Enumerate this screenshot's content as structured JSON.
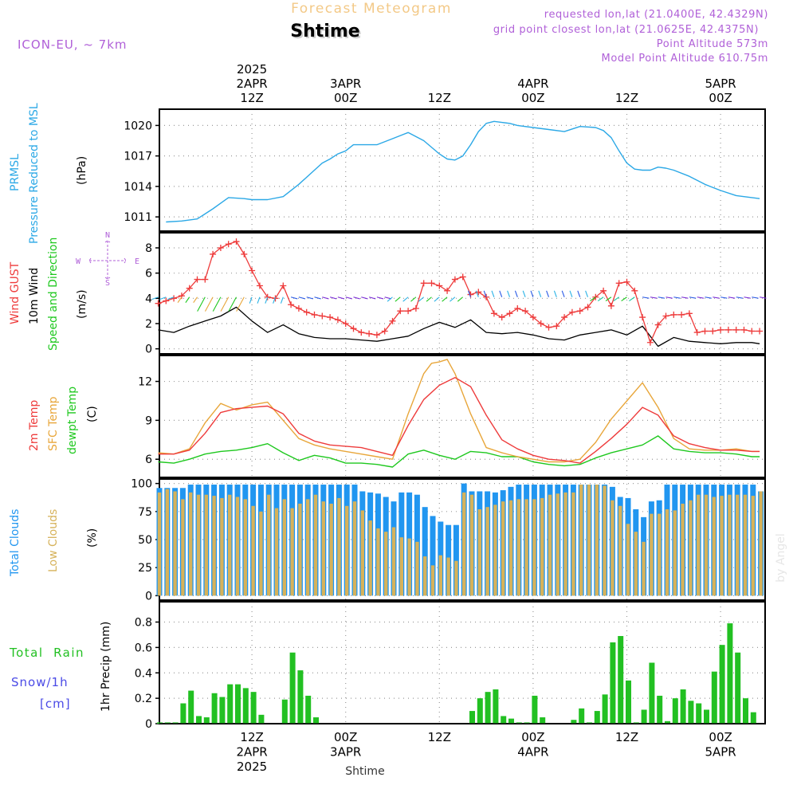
{
  "header": {
    "product": "Forecast Meteogram",
    "location": "Shtime",
    "model": "ICON-EU, ~ 7km",
    "requested": "requested lon,lat (21.0400E, 42.4329N)",
    "gridpoint": "grid point closest lon,lat (21.0625E, 42.4375N)",
    "point_alt": "Point Altitude 573m",
    "model_alt": "Model Point Altitude 610.75m",
    "footer_location": "Shtime",
    "watermark": "by Angel"
  },
  "time_axis": {
    "top_labels": [
      {
        "hour": 12,
        "lines": [
          "2025",
          "2APR",
          "12Z"
        ]
      },
      {
        "hour": 24,
        "lines": [
          "3APR",
          "00Z"
        ]
      },
      {
        "hour": 36,
        "lines": [
          "12Z"
        ]
      },
      {
        "hour": 48,
        "lines": [
          "4APR",
          "00Z"
        ]
      },
      {
        "hour": 60,
        "lines": [
          "12Z"
        ]
      },
      {
        "hour": 72,
        "lines": [
          "5APR",
          "00Z"
        ]
      }
    ],
    "bottom_labels": [
      {
        "hour": 12,
        "lines": [
          "12Z",
          "2APR",
          "2025"
        ]
      },
      {
        "hour": 24,
        "lines": [
          "00Z",
          "3APR"
        ]
      },
      {
        "hour": 36,
        "lines": [
          "12Z"
        ]
      },
      {
        "hour": 48,
        "lines": [
          "00Z",
          "4APR"
        ]
      },
      {
        "hour": 60,
        "lines": [
          "12Z"
        ]
      },
      {
        "hour": 72,
        "lines": [
          "00Z",
          "5APR"
        ]
      }
    ]
  },
  "panels": {
    "pressure": {
      "label_lines": [
        "PRMSL",
        "Pressure Reduced to MSL"
      ],
      "unit": "(hPa)",
      "ticks": [
        "1011",
        "1014",
        "1017",
        "1020"
      ]
    },
    "wind": {
      "gust_label": "Wind GUST",
      "wind_label": "10m Wind",
      "dir_label": "Speed and Direction",
      "unit": "(m/s)",
      "ticks": [
        "0",
        "2",
        "4",
        "6",
        "8"
      ],
      "compass_n": "N",
      "compass_s": "S",
      "compass_w": "W",
      "compass_e": "E"
    },
    "temp": {
      "t2m_label": "2m Temp",
      "sfc_label": "SFC Temp",
      "dew_label": "dewpt Temp",
      "unit": "(C)",
      "ticks": [
        "6",
        "9",
        "12"
      ]
    },
    "clouds": {
      "total_label": "Total Clouds",
      "low_label": "Low Clouds",
      "unit": "(%)",
      "ticks": [
        "0",
        "25",
        "50",
        "75",
        "100"
      ]
    },
    "precip": {
      "rain_label": "Total  Rain",
      "snow_label": "Snow/1h",
      "snow_unit": "[cm]",
      "unit": "1hr Precip (mm)",
      "ticks": [
        "0",
        "0.2",
        "0.4",
        "0.6",
        "0.8"
      ]
    }
  },
  "colors": {
    "pressure": "#2ba8e6",
    "gust": "#ee3b3b",
    "wind": "#000000",
    "t2m": "#ee3b3b",
    "sfc": "#e8a63a",
    "dew": "#1ec81e",
    "total_clouds": "#2196f0",
    "low_clouds": "#d6b25a",
    "rain": "#22c022",
    "purple": "#b060d8",
    "title_orange": "#f3c987"
  },
  "chart_data": [
    {
      "type": "line",
      "title": "PRMSL Pressure Reduced to MSL",
      "ylabel": "(hPa)",
      "ylim": [
        1009.6,
        1021.6
      ],
      "series": [
        {
          "name": "PRMSL",
          "x": [
            1,
            3,
            5,
            7,
            9,
            11,
            12,
            14,
            16,
            18,
            20,
            21,
            22,
            23,
            24,
            25,
            26,
            28,
            30,
            32,
            34,
            36,
            37,
            38,
            39,
            40,
            41,
            42,
            43,
            44,
            45,
            46,
            48,
            50,
            52,
            54,
            56,
            57,
            58,
            59,
            60,
            61,
            62,
            63,
            64,
            65,
            66,
            68,
            70,
            72,
            74,
            76,
            77
          ],
          "values": [
            1010.5,
            1010.6,
            1010.8,
            1011.8,
            1012.9,
            1012.8,
            1012.7,
            1012.7,
            1013.0,
            1014.2,
            1015.6,
            1016.3,
            1016.7,
            1017.2,
            1017.5,
            1018.1,
            1018.1,
            1018.1,
            1018.7,
            1019.3,
            1018.5,
            1017.2,
            1016.7,
            1016.6,
            1017.0,
            1018.1,
            1019.4,
            1020.2,
            1020.4,
            1020.3,
            1020.2,
            1020.0,
            1019.8,
            1019.6,
            1019.4,
            1019.9,
            1019.8,
            1019.5,
            1018.8,
            1017.5,
            1016.3,
            1015.7,
            1015.6,
            1015.6,
            1015.9,
            1015.8,
            1015.6,
            1015.0,
            1014.2,
            1013.6,
            1013.1,
            1012.9,
            1012.8
          ]
        }
      ]
    },
    {
      "type": "line",
      "title": "Wind GUST / 10m Wind Speed and Direction",
      "ylabel": "(m/s)",
      "ylim": [
        -0.4,
        9.2
      ],
      "series": [
        {
          "name": "Wind GUST",
          "x": [
            0,
            1,
            2,
            3,
            4,
            5,
            6,
            7,
            8,
            9,
            10,
            11,
            12,
            13,
            14,
            15,
            16,
            17,
            18,
            19,
            20,
            21,
            22,
            23,
            24,
            25,
            26,
            27,
            28,
            29,
            30,
            31,
            32,
            33,
            34,
            35,
            36,
            37,
            38,
            39,
            40,
            41,
            42,
            43,
            44,
            45,
            46,
            47,
            48,
            49,
            50,
            51,
            52,
            53,
            54,
            55,
            56,
            57,
            58,
            59,
            60,
            61,
            62,
            63,
            64,
            65,
            66,
            67,
            68,
            69,
            70,
            71,
            72,
            73,
            74,
            75,
            76,
            77
          ],
          "values": [
            3.6,
            3.8,
            4.0,
            4.2,
            4.8,
            5.5,
            5.5,
            7.5,
            8.0,
            8.3,
            8.5,
            7.5,
            6.2,
            5.0,
            4.1,
            4.0,
            5.0,
            3.5,
            3.2,
            2.9,
            2.7,
            2.6,
            2.5,
            2.3,
            2.0,
            1.6,
            1.3,
            1.2,
            1.1,
            1.4,
            2.2,
            3.0,
            3.0,
            3.2,
            5.2,
            5.2,
            5.0,
            4.6,
            5.5,
            5.7,
            4.3,
            4.5,
            4.1,
            2.8,
            2.5,
            2.8,
            3.2,
            3.0,
            2.5,
            2.0,
            1.7,
            1.8,
            2.5,
            2.9,
            3.0,
            3.3,
            4.1,
            4.6,
            3.4,
            5.2,
            5.3,
            4.6,
            2.5,
            0.5,
            1.9,
            2.6,
            2.7,
            2.7,
            2.8,
            1.3,
            1.4,
            1.4,
            1.5,
            1.5,
            1.5,
            1.5,
            1.4,
            1.4
          ]
        },
        {
          "name": "10m Wind",
          "x": [
            0,
            2,
            4,
            6,
            8,
            10,
            12,
            14,
            16,
            18,
            20,
            22,
            24,
            26,
            28,
            30,
            32,
            34,
            36,
            38,
            40,
            42,
            44,
            46,
            48,
            50,
            52,
            54,
            56,
            58,
            60,
            62,
            64,
            66,
            68,
            70,
            72,
            74,
            76,
            77
          ],
          "values": [
            1.5,
            1.3,
            1.8,
            2.2,
            2.6,
            3.3,
            2.2,
            1.3,
            1.9,
            1.2,
            0.9,
            0.8,
            0.8,
            0.7,
            0.6,
            0.8,
            1.0,
            1.6,
            2.1,
            1.7,
            2.3,
            1.3,
            1.2,
            1.3,
            1.1,
            0.8,
            0.7,
            1.1,
            1.3,
            1.5,
            1.1,
            1.8,
            0.2,
            0.9,
            0.6,
            0.5,
            0.4,
            0.5,
            0.5,
            0.4
          ]
        }
      ]
    },
    {
      "type": "line",
      "title": "2m Temp / SFC Temp / dewpt Temp",
      "ylabel": "(C)",
      "ylim": [
        4.6,
        14.0
      ],
      "series": [
        {
          "name": "2m Temp",
          "x": [
            0,
            2,
            4,
            6,
            8,
            10,
            12,
            14,
            16,
            18,
            20,
            22,
            24,
            26,
            28,
            30,
            32,
            34,
            36,
            38,
            40,
            42,
            44,
            46,
            48,
            50,
            52,
            54,
            56,
            58,
            60,
            62,
            64,
            66,
            68,
            70,
            72,
            74,
            76,
            77
          ],
          "values": [
            6.4,
            6.4,
            6.7,
            8.0,
            9.6,
            9.9,
            10.0,
            10.1,
            9.5,
            8.0,
            7.4,
            7.1,
            7.0,
            6.9,
            6.6,
            6.3,
            8.6,
            10.6,
            11.7,
            12.3,
            11.6,
            9.4,
            7.5,
            6.8,
            6.3,
            6.0,
            5.9,
            5.7,
            6.6,
            7.6,
            8.7,
            10.0,
            9.4,
            7.8,
            7.2,
            6.9,
            6.7,
            6.7,
            6.6,
            6.6
          ]
        },
        {
          "name": "SFC Temp",
          "x": [
            0,
            2,
            4,
            6,
            8,
            10,
            12,
            14,
            16,
            18,
            20,
            22,
            24,
            26,
            28,
            30,
            32,
            34,
            35,
            36,
            37,
            38,
            40,
            42,
            44,
            46,
            48,
            50,
            52,
            54,
            56,
            58,
            60,
            62,
            64,
            66,
            68,
            70,
            72,
            74,
            76,
            77
          ],
          "values": [
            6.5,
            6.4,
            6.8,
            8.8,
            10.3,
            9.8,
            10.2,
            10.4,
            9.0,
            7.6,
            7.1,
            6.8,
            6.6,
            6.4,
            6.2,
            6.0,
            9.5,
            12.6,
            13.4,
            13.5,
            13.7,
            12.6,
            9.5,
            6.9,
            6.5,
            6.2,
            6.0,
            5.8,
            5.8,
            6.0,
            7.3,
            9.1,
            10.5,
            11.9,
            10.0,
            7.6,
            6.8,
            6.7,
            6.7,
            6.8,
            6.6,
            6.6
          ]
        },
        {
          "name": "dewpt Temp",
          "x": [
            0,
            2,
            4,
            6,
            8,
            10,
            12,
            14,
            16,
            18,
            20,
            22,
            24,
            26,
            28,
            30,
            32,
            34,
            36,
            38,
            40,
            42,
            44,
            46,
            48,
            50,
            52,
            54,
            56,
            58,
            60,
            62,
            64,
            66,
            68,
            70,
            72,
            74,
            76,
            77
          ],
          "values": [
            5.8,
            5.7,
            6.0,
            6.4,
            6.6,
            6.7,
            6.9,
            7.2,
            6.5,
            5.9,
            6.3,
            6.1,
            5.7,
            5.7,
            5.6,
            5.4,
            6.4,
            6.7,
            6.3,
            6.0,
            6.6,
            6.5,
            6.2,
            6.2,
            5.8,
            5.6,
            5.5,
            5.6,
            6.1,
            6.5,
            6.8,
            7.1,
            7.8,
            6.8,
            6.6,
            6.5,
            6.5,
            6.4,
            6.2,
            6.2
          ]
        }
      ]
    },
    {
      "type": "bar",
      "title": "Total Clouds / Low Clouds",
      "ylabel": "(%)",
      "ylim": [
        -4,
        104
      ],
      "x_start": 0,
      "series": [
        {
          "name": "Total Clouds",
          "values": [
            96,
            96,
            96,
            96,
            99,
            99,
            99,
            99,
            99,
            99,
            99,
            99,
            99,
            99,
            99,
            99,
            99,
            99,
            99,
            99,
            99,
            99,
            99,
            99,
            99,
            99,
            93,
            92,
            91,
            88,
            84,
            92,
            92,
            90,
            79,
            71,
            66,
            63,
            63,
            100,
            93,
            93,
            93,
            92,
            94,
            97,
            99,
            99,
            99,
            99,
            99,
            99,
            99,
            99,
            99,
            99,
            99,
            99,
            97,
            88,
            87,
            77,
            70,
            84,
            85,
            99,
            99,
            99,
            99,
            99,
            99,
            99,
            99,
            99,
            99,
            99,
            99,
            93
          ]
        },
        {
          "name": "Low Clouds",
          "values": [
            92,
            95,
            93,
            86,
            92,
            90,
            90,
            89,
            87,
            90,
            88,
            86,
            80,
            75,
            90,
            78,
            86,
            78,
            82,
            86,
            90,
            84,
            82,
            87,
            80,
            84,
            76,
            67,
            60,
            57,
            61,
            52,
            51,
            48,
            35,
            27,
            36,
            34,
            31,
            92,
            90,
            77,
            79,
            81,
            84,
            85,
            86,
            86,
            86,
            87,
            90,
            91,
            92,
            92,
            99,
            99,
            99,
            98,
            85,
            80,
            64,
            57,
            48,
            73,
            73,
            77,
            76,
            82,
            85,
            90,
            90,
            88,
            89,
            90,
            90,
            90,
            89,
            93
          ]
        }
      ]
    },
    {
      "type": "bar",
      "title": "1hr Precip",
      "ylabel": "1hr Precip (mm)",
      "ylim": [
        0,
        0.96
      ],
      "x_start": 0,
      "series": [
        {
          "name": "Total Rain",
          "values": [
            0.01,
            0.01,
            0.01,
            0.16,
            0.26,
            0.06,
            0.05,
            0.24,
            0.21,
            0.31,
            0.31,
            0.28,
            0.25,
            0.07,
            0,
            0,
            0.19,
            0.56,
            0.42,
            0.22,
            0.05,
            0,
            0,
            0,
            0,
            0,
            0,
            0,
            0,
            0,
            0,
            0,
            0,
            0,
            0,
            0,
            0,
            0,
            0,
            0,
            0.1,
            0.2,
            0.25,
            0.27,
            0.06,
            0.04,
            0.01,
            0.01,
            0.22,
            0.05,
            0,
            0,
            0,
            0.03,
            0.12,
            0.01,
            0.1,
            0.23,
            0.64,
            0.69,
            0.34,
            0.01,
            0.11,
            0.48,
            0.22,
            0.02,
            0.2,
            0.27,
            0.18,
            0.16,
            0.11,
            0.41,
            0.62,
            0.79,
            0.56,
            0.2,
            0.09,
            0
          ]
        }
      ]
    }
  ]
}
